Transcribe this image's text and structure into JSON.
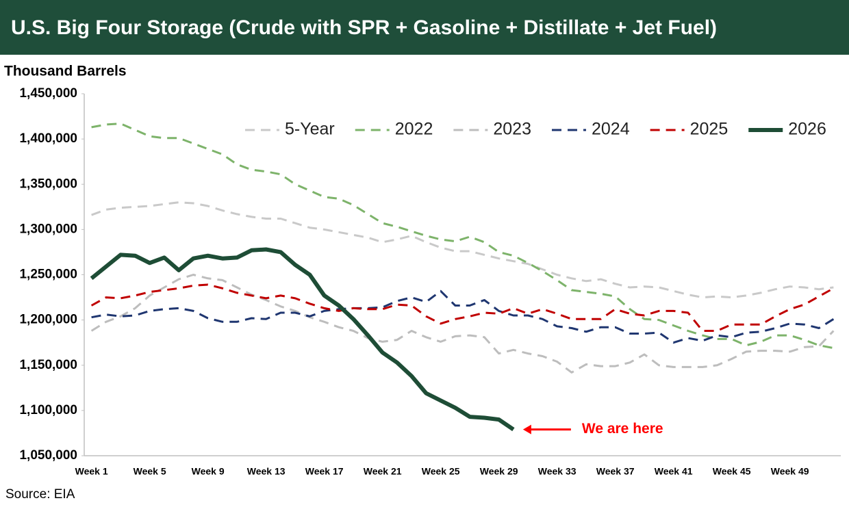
{
  "chart_data": {
    "type": "line",
    "title": "U.S. Big Four Storage (Crude with SPR + Gasoline + Distillate + Jet Fuel)",
    "ylabel": "Thousand Barrels",
    "source": "Source: EIA",
    "annotation": "We are here",
    "annotation_color": "#ff0000",
    "legend": "top-right",
    "grid": false,
    "ylim": [
      1050000,
      1450000
    ],
    "yticks": [
      {
        "value": 1050000,
        "label": "1,050,000"
      },
      {
        "value": 1100000,
        "label": "1,100,000"
      },
      {
        "value": 1150000,
        "label": "1,150,000"
      },
      {
        "value": 1200000,
        "label": "1,200,000"
      },
      {
        "value": 1250000,
        "label": "1,250,000"
      },
      {
        "value": 1300000,
        "label": "1,300,000"
      },
      {
        "value": 1350000,
        "label": "1,350,000"
      },
      {
        "value": 1400000,
        "label": "1,400,000"
      },
      {
        "value": 1450000,
        "label": "1,450,000"
      }
    ],
    "categories": [
      "Week 1",
      null,
      null,
      null,
      "Week 5",
      null,
      null,
      null,
      "Week 9",
      null,
      null,
      null,
      "Week 13",
      null,
      null,
      null,
      "Week 17",
      null,
      null,
      null,
      "Week 21",
      null,
      null,
      null,
      "Week 25",
      null,
      null,
      null,
      "Week 29",
      null,
      null,
      null,
      "Week 33",
      null,
      null,
      null,
      "Week 37",
      null,
      null,
      null,
      "Week 41",
      null,
      null,
      null,
      "Week 45",
      null,
      null,
      null,
      "Week 49",
      null,
      null,
      null
    ],
    "series": [
      {
        "name": "5-Year",
        "color": "#c9c9c9",
        "style": "dashed",
        "values": [
          1316000,
          1322000,
          1324000,
          1325000,
          1326000,
          1328000,
          1330000,
          1329000,
          1326000,
          1321000,
          1317000,
          1314000,
          1312000,
          1312000,
          1307000,
          1302000,
          1300000,
          1297000,
          1294000,
          1291000,
          1286000,
          1289000,
          1293000,
          1286000,
          1280000,
          1276000,
          1276000,
          1272000,
          1268000,
          1265000,
          1262000,
          1256000,
          1250000,
          1246000,
          1243000,
          1245000,
          1240000,
          1236000,
          1237000,
          1236000,
          1232000,
          1228000,
          1225000,
          1226000,
          1225000,
          1227000,
          1230000,
          1234000,
          1237000,
          1236000,
          1234000,
          1236000
        ]
      },
      {
        "name": "2022",
        "color": "#7db36a",
        "style": "dashed",
        "values": [
          1413000,
          1416000,
          1417000,
          1410000,
          1403000,
          1401000,
          1401000,
          1395000,
          1389000,
          1383000,
          1372000,
          1366000,
          1364000,
          1361000,
          1350000,
          1343000,
          1336000,
          1334000,
          1327000,
          1317000,
          1307000,
          1303000,
          1298000,
          1293000,
          1289000,
          1287000,
          1292000,
          1286000,
          1275000,
          1271000,
          1263000,
          1254000,
          1244000,
          1233000,
          1231000,
          1229000,
          1226000,
          1212000,
          1201000,
          1200000,
          1194000,
          1188000,
          1183000,
          1179000,
          1179000,
          1172000,
          1176000,
          1183000,
          1183000,
          1178000,
          1172000,
          1169000
        ]
      },
      {
        "name": "2023",
        "color": "#bdbdbd",
        "style": "dashed",
        "values": [
          1188000,
          1198000,
          1204000,
          1213000,
          1227000,
          1236000,
          1245000,
          1250000,
          1246000,
          1244000,
          1236000,
          1228000,
          1222000,
          1215000,
          1210000,
          1203000,
          1198000,
          1192000,
          1188000,
          1180000,
          1176000,
          1178000,
          1188000,
          1181000,
          1176000,
          1182000,
          1183000,
          1181000,
          1163000,
          1167000,
          1163000,
          1160000,
          1154000,
          1142000,
          1151000,
          1149000,
          1149000,
          1153000,
          1162000,
          1150000,
          1148000,
          1148000,
          1148000,
          1150000,
          1157000,
          1165000,
          1166000,
          1166000,
          1165000,
          1170000,
          1171000,
          1188000
        ]
      },
      {
        "name": "2024",
        "color": "#1f3670",
        "style": "dashed",
        "values": [
          1203000,
          1206000,
          1204000,
          1205000,
          1210000,
          1212000,
          1213000,
          1210000,
          1202000,
          1198000,
          1198000,
          1202000,
          1201000,
          1208000,
          1208000,
          1204000,
          1210000,
          1212000,
          1213000,
          1213000,
          1214000,
          1221000,
          1225000,
          1220000,
          1232000,
          1216000,
          1216000,
          1222000,
          1210000,
          1205000,
          1205000,
          1201000,
          1193000,
          1191000,
          1187000,
          1192000,
          1192000,
          1185000,
          1185000,
          1186000,
          1175000,
          1180000,
          1177000,
          1183000,
          1181000,
          1186000,
          1187000,
          1191000,
          1196000,
          1195000,
          1191000,
          1201000
        ]
      },
      {
        "name": "2025",
        "color": "#c00000",
        "style": "dashed",
        "values": [
          1216000,
          1225000,
          1224000,
          1227000,
          1231000,
          1233000,
          1235000,
          1238000,
          1239000,
          1235000,
          1230000,
          1227000,
          1224000,
          1227000,
          1224000,
          1218000,
          1213000,
          1210000,
          1213000,
          1212000,
          1212000,
          1217000,
          1216000,
          1204000,
          1196000,
          1201000,
          1204000,
          1208000,
          1207000,
          1213000,
          1207000,
          1212000,
          1207000,
          1201000,
          1201000,
          1201000,
          1212000,
          1207000,
          1205000,
          1210000,
          1210000,
          1208000,
          1188000,
          1188000,
          1195000,
          1195000,
          1195000,
          1204000,
          1212000,
          1217000,
          1226000,
          1235000
        ]
      },
      {
        "name": "2026",
        "color": "#1e4d36",
        "style": "solid",
        "values": [
          1246000,
          1259000,
          1272000,
          1271000,
          1263000,
          1269000,
          1255000,
          1268000,
          1271000,
          1268000,
          1269000,
          1277000,
          1278000,
          1275000,
          1261000,
          1250000,
          1227000,
          1216000,
          1201000,
          1183000,
          1164000,
          1153000,
          1138000,
          1119000,
          1111000,
          1103000,
          1093000,
          1092000,
          1090000,
          1079000,
          null,
          null,
          null,
          null,
          null,
          null,
          null,
          null,
          null,
          null,
          null,
          null,
          null,
          null,
          null,
          null,
          null,
          null,
          null,
          null,
          null,
          null
        ]
      }
    ]
  }
}
